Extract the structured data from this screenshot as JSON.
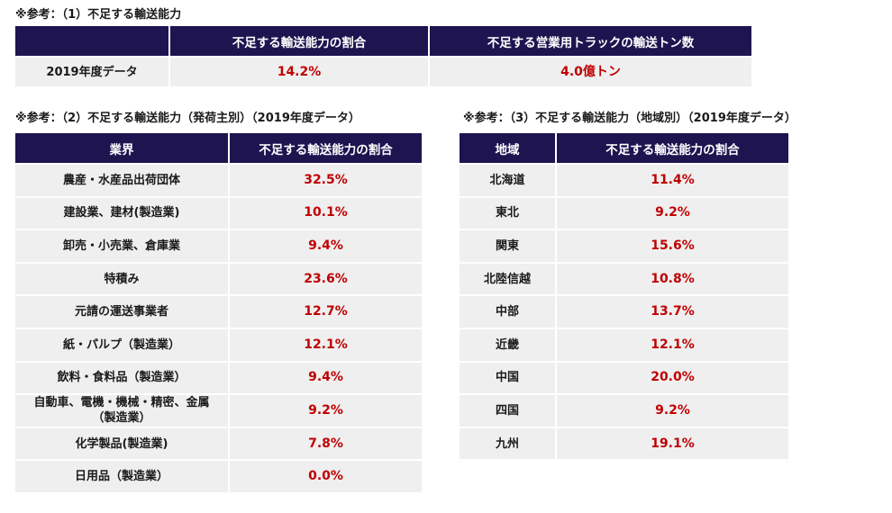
{
  "section1": {
    "title": "※参考：（1）不足する輸送能力",
    "headers": [
      "",
      "不足する輸送能力の割合",
      "不足する営業用トラックの輸送トン数"
    ],
    "row": {
      "label": "2019年度データ",
      "values": [
        "14.2%",
        "4.0億トン"
      ]
    }
  },
  "section2": {
    "title": "※参考：（2）不足する輸送能力（発荷主別）（2019年度データ）",
    "headers": [
      "業界",
      "不足する輸送能力の割合"
    ],
    "rows": [
      {
        "label": "農産・水産品出荷団体",
        "value": "32.5%"
      },
      {
        "label": "建設業、建材(製造業)",
        "value": "10.1%"
      },
      {
        "label": "卸売・小売業、倉庫業",
        "value": "9.4%"
      },
      {
        "label": "特積み",
        "value": "23.6%"
      },
      {
        "label": "元請の運送事業者",
        "value": "12.7%"
      },
      {
        "label": "紙・パルプ（製造業）",
        "value": "12.1%"
      },
      {
        "label": "飲料・食料品（製造業）",
        "value": "9.4%"
      },
      {
        "label": "自動車、電機・機械・精密、金属（製造業）",
        "value": "9.2%"
      },
      {
        "label": "化学製品(製造業)",
        "value": "7.8%"
      },
      {
        "label": "日用品（製造業）",
        "value": "0.0%"
      }
    ]
  },
  "section3": {
    "title": "※参考：（3）不足する輸送能力（地域別）（2019年度データ）",
    "headers": [
      "地域",
      "不足する輸送能力の割合"
    ],
    "rows": [
      {
        "label": "北海道",
        "value": "11.4%"
      },
      {
        "label": "東北",
        "value": "9.2%"
      },
      {
        "label": "関東",
        "value": "15.6%"
      },
      {
        "label": "北陸信越",
        "value": "10.8%"
      },
      {
        "label": "中部",
        "value": "13.7%"
      },
      {
        "label": "近畿",
        "value": "12.1%"
      },
      {
        "label": "中国",
        "value": "20.0%"
      },
      {
        "label": "四国",
        "value": "9.2%"
      },
      {
        "label": "九州",
        "value": "19.1%"
      }
    ]
  },
  "colors": {
    "header_bg": "#1e1450",
    "header_text": "#ffffff",
    "cell_bg": "#efefef",
    "value_text": "#c00000"
  }
}
